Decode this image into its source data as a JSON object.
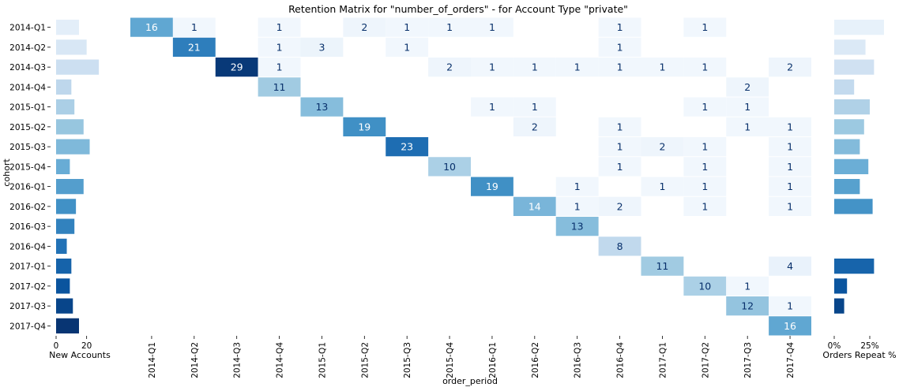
{
  "chart_data": {
    "type": "heatmap",
    "title": "Retention Matrix for \"number_of_orders\" - for Account Type \"private\"",
    "xlabel": "order_period",
    "ylabel": "cohort",
    "cohorts": [
      "2014-Q1",
      "2014-Q2",
      "2014-Q3",
      "2014-Q4",
      "2015-Q1",
      "2015-Q2",
      "2015-Q3",
      "2015-Q4",
      "2016-Q1",
      "2016-Q2",
      "2016-Q3",
      "2016-Q4",
      "2017-Q1",
      "2017-Q2",
      "2017-Q3",
      "2017-Q4"
    ],
    "periods": [
      "2014-Q1",
      "2014-Q2",
      "2014-Q3",
      "2014-Q4",
      "2015-Q1",
      "2015-Q2",
      "2015-Q3",
      "2015-Q4",
      "2016-Q1",
      "2016-Q2",
      "2016-Q3",
      "2016-Q4",
      "2017-Q1",
      "2017-Q2",
      "2017-Q3",
      "2017-Q4"
    ],
    "matrix": [
      [
        16,
        1,
        null,
        1,
        null,
        2,
        1,
        1,
        1,
        null,
        null,
        1,
        null,
        1,
        null,
        null
      ],
      [
        null,
        21,
        null,
        1,
        3,
        null,
        1,
        null,
        null,
        null,
        null,
        1,
        null,
        null,
        null,
        null
      ],
      [
        null,
        null,
        29,
        1,
        null,
        null,
        null,
        2,
        1,
        1,
        1,
        1,
        1,
        1,
        null,
        2
      ],
      [
        null,
        null,
        null,
        11,
        null,
        null,
        null,
        null,
        null,
        null,
        null,
        null,
        null,
        null,
        2,
        null
      ],
      [
        null,
        null,
        null,
        null,
        13,
        null,
        null,
        null,
        1,
        1,
        null,
        null,
        null,
        1,
        1,
        null
      ],
      [
        null,
        null,
        null,
        null,
        null,
        19,
        null,
        null,
        null,
        2,
        null,
        1,
        null,
        null,
        1,
        1
      ],
      [
        null,
        null,
        null,
        null,
        null,
        null,
        23,
        null,
        null,
        null,
        null,
        1,
        2,
        1,
        null,
        1
      ],
      [
        null,
        null,
        null,
        null,
        null,
        null,
        null,
        10,
        null,
        null,
        null,
        1,
        null,
        1,
        null,
        1
      ],
      [
        null,
        null,
        null,
        null,
        null,
        null,
        null,
        null,
        19,
        null,
        1,
        null,
        1,
        1,
        null,
        1
      ],
      [
        null,
        null,
        null,
        null,
        null,
        null,
        null,
        null,
        null,
        14,
        1,
        2,
        null,
        1,
        null,
        1
      ],
      [
        null,
        null,
        null,
        null,
        null,
        null,
        null,
        null,
        null,
        null,
        13,
        null,
        null,
        null,
        null,
        null
      ],
      [
        null,
        null,
        null,
        null,
        null,
        null,
        null,
        null,
        null,
        null,
        null,
        8,
        null,
        null,
        null,
        null
      ],
      [
        null,
        null,
        null,
        null,
        null,
        null,
        null,
        null,
        null,
        null,
        null,
        null,
        11,
        null,
        null,
        4
      ],
      [
        null,
        null,
        null,
        null,
        null,
        null,
        null,
        null,
        null,
        null,
        null,
        null,
        null,
        10,
        1,
        null
      ],
      [
        null,
        null,
        null,
        null,
        null,
        null,
        null,
        null,
        null,
        null,
        null,
        null,
        null,
        null,
        12,
        1
      ],
      [
        null,
        null,
        null,
        null,
        null,
        null,
        null,
        null,
        null,
        null,
        null,
        null,
        null,
        null,
        null,
        16
      ]
    ],
    "new_accounts": {
      "label": "New Accounts",
      "ticks": [
        0,
        20
      ],
      "xlim": [
        0,
        30
      ],
      "values": [
        15,
        20,
        28,
        10,
        12,
        18,
        22,
        9,
        18,
        13,
        12,
        7,
        10,
        9,
        11,
        15
      ]
    },
    "orders_repeat": {
      "label": "Orders Repeat %",
      "tick_labels": [
        "0%",
        "25%"
      ],
      "tick_values": [
        0,
        25
      ],
      "xlim": [
        0,
        40
      ],
      "values": [
        35,
        22,
        28,
        14,
        25,
        21,
        18,
        24,
        18,
        27,
        null,
        null,
        28,
        9,
        7,
        null
      ]
    },
    "color_scale": {
      "name": "Blues",
      "vmin": 0,
      "vmax": 30
    }
  }
}
